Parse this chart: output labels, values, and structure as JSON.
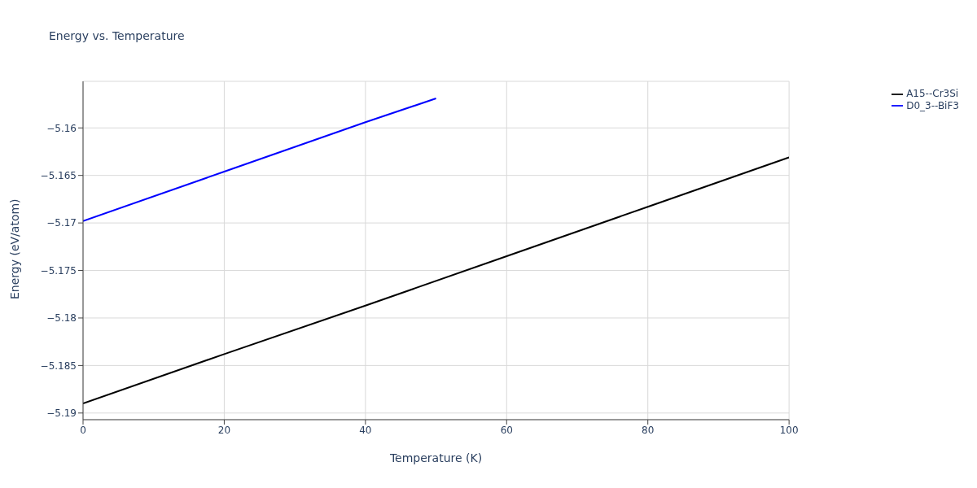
{
  "chart_data": {
    "type": "line",
    "title": "Energy vs. Temperature",
    "xlabel": "Temperature (K)",
    "ylabel": "Energy (eV/atom)",
    "series": [
      {
        "name": "A15--Cr3Si",
        "color": "#000000",
        "x": [
          0,
          20,
          40,
          60,
          80,
          100
        ],
        "values": [
          -5.189,
          -5.1838,
          -5.1787,
          -5.1735,
          -5.1683,
          -5.1631
        ]
      },
      {
        "name": "D0_3--BiF3",
        "color": "#0000ff",
        "x": [
          0,
          20,
          40,
          50
        ],
        "values": [
          -5.1698,
          -5.1646,
          -5.1594,
          -5.1569
        ]
      }
    ],
    "xlim": [
      0,
      100
    ],
    "xticks": [
      0,
      20,
      40,
      60,
      80,
      100
    ],
    "ylim": [
      -5.1907,
      -5.1551
    ],
    "yticks": [
      -5.19,
      -5.185,
      -5.18,
      -5.175,
      -5.17,
      -5.165,
      -5.16
    ],
    "grid": true,
    "legend": "top right",
    "marker": "none",
    "line_style": "solid"
  }
}
